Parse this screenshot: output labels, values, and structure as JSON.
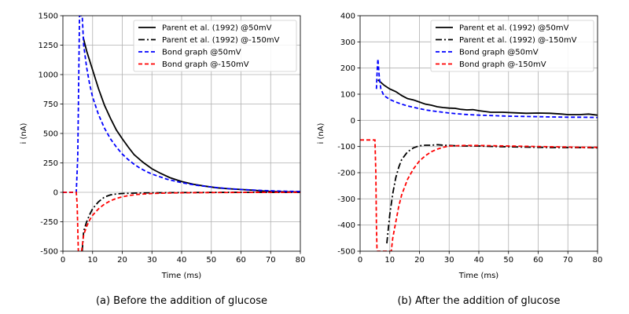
{
  "chart_data": [
    {
      "id": "a",
      "type": "line",
      "caption": "(a) Before the addition of glucose",
      "xlabel": "Time (ms)",
      "ylabel": "i (nA)",
      "xlim": [
        0,
        80
      ],
      "ylim": [
        -500,
        1500
      ],
      "xticks": [
        0,
        10,
        20,
        30,
        40,
        50,
        60,
        70,
        80
      ],
      "yticks": [
        -500,
        -250,
        0,
        250,
        500,
        750,
        1000,
        1250,
        1500
      ],
      "grid": true,
      "legend_position": "top-right",
      "series": [
        {
          "name": "Parent et al. (1992) @50mV",
          "color": "#000000",
          "dash": "solid",
          "x": [
            6.8,
            8,
            10,
            12,
            14,
            16,
            18,
            20,
            22,
            24,
            27,
            30,
            33,
            36,
            40,
            44,
            48,
            52,
            56,
            60,
            64,
            68,
            72,
            76,
            80
          ],
          "y": [
            1320,
            1200,
            1040,
            880,
            740,
            630,
            530,
            455,
            385,
            320,
            255,
            200,
            160,
            125,
            92,
            68,
            52,
            38,
            30,
            24,
            18,
            10,
            6,
            4,
            3
          ]
        },
        {
          "name": "Parent et al. (1992) @-150mV",
          "color": "#000000",
          "dash": "dashdot",
          "x": [
            6.5,
            7,
            8,
            9,
            10,
            12,
            14,
            16,
            18,
            20,
            25,
            30,
            40,
            50,
            60,
            70,
            80
          ],
          "y": [
            -500,
            -330,
            -250,
            -190,
            -140,
            -80,
            -40,
            -22,
            -14,
            -10,
            -6,
            -4,
            -2,
            -1,
            0,
            0,
            0
          ]
        },
        {
          "name": "Bond graph @50mV",
          "color": "#0000ff",
          "dash": "dashed",
          "x": [
            0,
            3,
            4.5,
            5,
            5.3,
            5.6,
            6,
            6.5,
            7,
            8,
            9,
            10,
            12,
            14,
            16,
            18,
            20,
            22,
            24,
            26,
            28,
            30,
            35,
            40,
            45,
            50,
            55,
            60,
            65,
            70,
            75,
            80
          ],
          "y": [
            0,
            0,
            0,
            300,
            900,
            1500,
            1500,
            1500,
            1250,
            1060,
            920,
            810,
            660,
            545,
            455,
            385,
            325,
            278,
            238,
            205,
            178,
            155,
            112,
            82,
            60,
            45,
            33,
            24,
            18,
            13,
            9,
            7
          ]
        },
        {
          "name": "Bond graph @-150mV",
          "color": "#ff0000",
          "dash": "dashed",
          "x": [
            0,
            3,
            4.5,
            4.8,
            5.2,
            5.8,
            6.3,
            7,
            8,
            9,
            10,
            12,
            14,
            16,
            18,
            20,
            22,
            25,
            30,
            35,
            40,
            50,
            60,
            70,
            80
          ],
          "y": [
            0,
            0,
            0,
            -100,
            -500,
            -500,
            -500,
            -360,
            -290,
            -235,
            -195,
            -140,
            -100,
            -72,
            -52,
            -38,
            -28,
            -18,
            -10,
            -6,
            -4,
            -2,
            -1,
            0,
            0
          ]
        }
      ]
    },
    {
      "id": "b",
      "type": "line",
      "caption": "(b) After the addition of glucose",
      "xlabel": "Time (ms)",
      "ylabel": "i (nA)",
      "xlim": [
        0,
        80
      ],
      "ylim": [
        -500,
        400
      ],
      "xticks": [
        0,
        10,
        20,
        30,
        40,
        50,
        60,
        70,
        80
      ],
      "yticks": [
        -500,
        -400,
        -300,
        -200,
        -100,
        0,
        100,
        200,
        300,
        400
      ],
      "grid": true,
      "legend_position": "top-right",
      "series": [
        {
          "name": "Parent et al. (1992) @50mV",
          "color": "#000000",
          "dash": "solid",
          "x": [
            6,
            8,
            10,
            12,
            14,
            16,
            18,
            20,
            22,
            24,
            26,
            28,
            30,
            32,
            34,
            36,
            38,
            40,
            44,
            48,
            52,
            56,
            60,
            64,
            68,
            70,
            74,
            77,
            80
          ],
          "y": [
            155,
            135,
            120,
            110,
            95,
            83,
            78,
            70,
            62,
            58,
            52,
            49,
            47,
            46,
            42,
            40,
            41,
            37,
            31,
            31,
            29,
            27,
            28,
            27,
            24,
            22,
            22,
            24,
            20
          ]
        },
        {
          "name": "Parent et al. (1992) @-150mV",
          "color": "#000000",
          "dash": "dashdot",
          "x": [
            9,
            10,
            11,
            12,
            13,
            14,
            16,
            18,
            20,
            22,
            24,
            26,
            28,
            30,
            35,
            40,
            45,
            50,
            55,
            60,
            65,
            70,
            75,
            80
          ],
          "y": [
            -470,
            -360,
            -280,
            -220,
            -180,
            -150,
            -120,
            -105,
            -97,
            -95,
            -95,
            -93,
            -95,
            -96,
            -98,
            -98,
            -100,
            -101,
            -102,
            -103,
            -104,
            -104,
            -104,
            -105
          ]
        },
        {
          "name": "Bond graph @50mV",
          "color": "#0000ff",
          "dash": "dashed",
          "x": [
            5.5,
            5.8,
            6,
            6.5,
            7,
            8,
            10,
            12,
            14,
            16,
            18,
            20,
            22,
            25,
            28,
            30,
            35,
            40,
            45,
            50,
            55,
            60,
            65,
            70,
            75,
            80
          ],
          "y": [
            120,
            200,
            235,
            160,
            120,
            95,
            80,
            70,
            62,
            55,
            50,
            45,
            40,
            35,
            31,
            28,
            23,
            20,
            18,
            16,
            15,
            14,
            13,
            12,
            12,
            11
          ]
        },
        {
          "name": "Bond graph @-150mV",
          "color": "#ff0000",
          "dash": "dashed",
          "x": [
            0,
            3,
            5,
            5.3,
            5.5,
            5.7,
            10.5,
            11,
            12,
            13,
            14,
            16,
            18,
            20,
            22,
            24,
            26,
            28,
            30,
            35,
            40,
            45,
            50,
            55,
            60,
            65,
            70,
            75,
            80
          ],
          "y": [
            -75,
            -75,
            -75,
            -200,
            -400,
            -500,
            -500,
            -450,
            -390,
            -330,
            -285,
            -225,
            -185,
            -155,
            -135,
            -120,
            -110,
            -103,
            -98,
            -96,
            -96,
            -97,
            -98,
            -99,
            -100,
            -101,
            -102,
            -103,
            -103
          ]
        }
      ]
    }
  ]
}
